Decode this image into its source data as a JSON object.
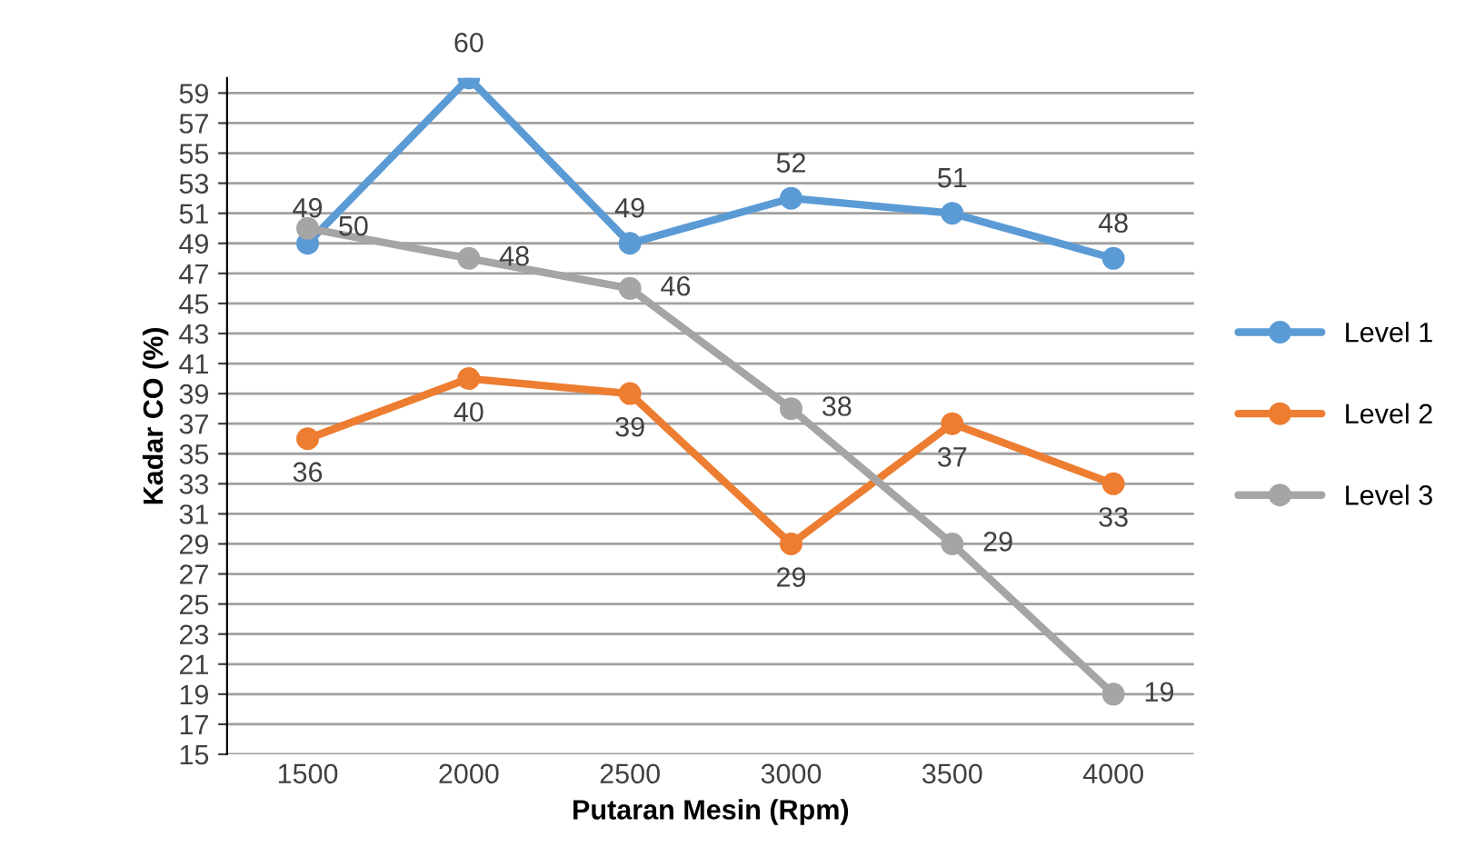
{
  "chart_data": {
    "type": "line",
    "xlabel": "Putaran Mesin (Rpm)",
    "ylabel": "Kadar CO (%)",
    "categories": [
      "1500",
      "2000",
      "2500",
      "3000",
      "3500",
      "4000"
    ],
    "series": [
      {
        "name": "Level 1",
        "color": "#5b9bd5",
        "values": [
          49,
          60,
          49,
          52,
          51,
          48
        ]
      },
      {
        "name": "Level 2",
        "color": "#ed7d31",
        "values": [
          36,
          40,
          39,
          29,
          37,
          33
        ]
      },
      {
        "name": "Level 3",
        "color": "#a5a5a5",
        "values": [
          50,
          48,
          46,
          38,
          29,
          19
        ]
      }
    ],
    "ylim": [
      15,
      60
    ],
    "yticks": [
      15,
      17,
      19,
      21,
      23,
      25,
      27,
      29,
      31,
      33,
      35,
      37,
      39,
      41,
      43,
      45,
      47,
      49,
      51,
      53,
      55,
      57,
      59
    ],
    "grid": "y",
    "legend": "right",
    "marker": "circle",
    "line_style": "solid",
    "data_labels": true
  }
}
